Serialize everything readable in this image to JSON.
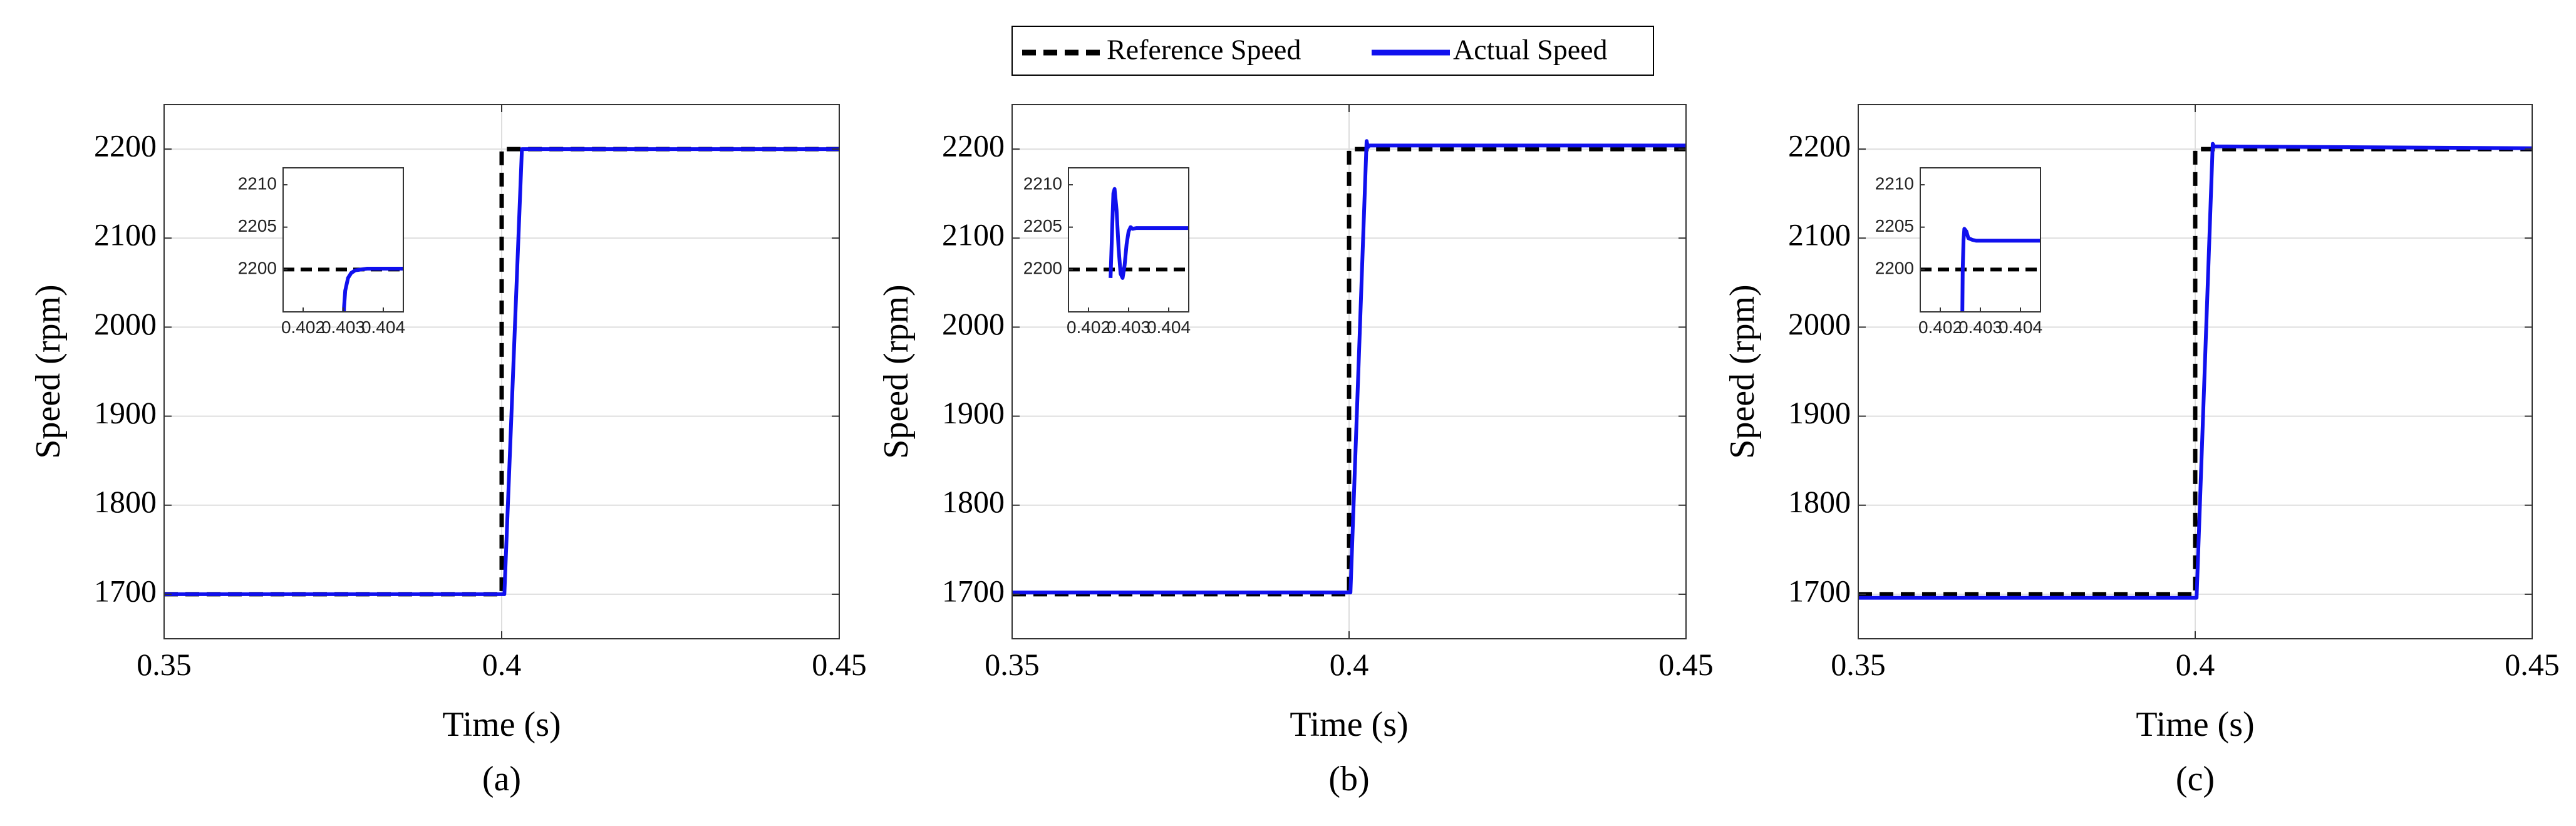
{
  "legend": {
    "entries": [
      {
        "label": "Reference Speed",
        "color": "#000000",
        "style": "dashed"
      },
      {
        "label": "Actual Speed",
        "color": "#1010ee",
        "style": "solid"
      }
    ]
  },
  "chart_data": [
    {
      "type": "line",
      "caption": "(a)",
      "xlabel": "Time (s)",
      "ylabel": "Speed (rpm)",
      "xlim": [
        0.35,
        0.45
      ],
      "ylim": [
        1650,
        2250
      ],
      "xticks": [
        "0.35",
        "0.4",
        "0.45"
      ],
      "yticks": [
        "1700",
        "1800",
        "1900",
        "2000",
        "2100",
        "2200"
      ],
      "grid": true,
      "series": [
        {
          "name": "Reference Speed",
          "x": [
            0.35,
            0.4,
            0.4,
            0.45
          ],
          "y": [
            1700,
            1700,
            2200,
            2200
          ]
        },
        {
          "name": "Actual Speed",
          "x": [
            0.35,
            0.4004,
            0.403,
            0.45
          ],
          "y": [
            1700,
            1700,
            2200,
            2200
          ]
        }
      ],
      "inset": {
        "xlim": [
          0.4015,
          0.4045
        ],
        "ylim": [
          2195,
          2212
        ],
        "xticks": [
          "0.402",
          "0.403",
          "0.404"
        ],
        "yticks": [
          "2200",
          "2205",
          "2210"
        ],
        "series": [
          {
            "name": "Reference Speed",
            "x": [
              0.4015,
              0.4045
            ],
            "y": [
              2200,
              2200
            ]
          },
          {
            "name": "Actual Speed",
            "x": [
              0.40301,
              0.40302,
              0.40305,
              0.40312,
              0.4032,
              0.4033,
              0.4036,
              0.4045
            ],
            "y": [
              2193,
              2195.5,
              2197.5,
              2199,
              2199.6,
              2199.9,
              2200.1,
              2200.1
            ]
          }
        ]
      }
    },
    {
      "type": "line",
      "caption": "(b)",
      "xlabel": "Time (s)",
      "ylabel": "Speed (rpm)",
      "xlim": [
        0.35,
        0.45
      ],
      "ylim": [
        1650,
        2250
      ],
      "xticks": [
        "0.35",
        "0.4",
        "0.45"
      ],
      "yticks": [
        "1700",
        "1800",
        "1900",
        "2000",
        "2100",
        "2200"
      ],
      "grid": true,
      "series": [
        {
          "name": "Reference Speed",
          "x": [
            0.35,
            0.4,
            0.4,
            0.45
          ],
          "y": [
            1700,
            1700,
            2200,
            2200
          ]
        },
        {
          "name": "Actual Speed",
          "x": [
            0.35,
            0.4002,
            0.4026,
            0.4028,
            0.403,
            0.4035,
            0.45
          ],
          "y": [
            1702,
            1702,
            2209,
            2202,
            2204,
            2204,
            2204
          ]
        }
      ],
      "inset": {
        "xlim": [
          0.4015,
          0.4045
        ],
        "ylim": [
          2195,
          2212
        ],
        "xticks": [
          "0.402",
          "0.403",
          "0.404"
        ],
        "yticks": [
          "2200",
          "2205",
          "2210"
        ],
        "series": [
          {
            "name": "Reference Speed",
            "x": [
              0.4015,
              0.4045
            ],
            "y": [
              2200,
              2200
            ]
          },
          {
            "name": "Actual Speed",
            "x": [
              0.40255,
              0.40259,
              0.40262,
              0.40265,
              0.4027,
              0.40275,
              0.4028,
              0.40285,
              0.4029,
              0.40295,
              0.403,
              0.40305,
              0.4031,
              0.4032,
              0.4045
            ],
            "y": [
              2199,
              2205,
              2209,
              2209.5,
              2207,
              2202.5,
              2199.5,
              2199,
              2200.5,
              2203,
              2204.5,
              2205,
              2204.8,
              2204.9,
              2204.9
            ]
          }
        ]
      }
    },
    {
      "type": "line",
      "caption": "(c)",
      "xlabel": "Time (s)",
      "ylabel": "Speed (rpm)",
      "xlim": [
        0.35,
        0.45
      ],
      "ylim": [
        1650,
        2250
      ],
      "xticks": [
        "0.35",
        "0.4",
        "0.45"
      ],
      "yticks": [
        "1700",
        "1800",
        "1900",
        "2000",
        "2100",
        "2200"
      ],
      "grid": true,
      "series": [
        {
          "name": "Reference Speed",
          "x": [
            0.35,
            0.4,
            0.4,
            0.45
          ],
          "y": [
            1700,
            1700,
            2200,
            2200
          ]
        },
        {
          "name": "Actual Speed",
          "x": [
            0.35,
            0.4002,
            0.4026,
            0.4028,
            0.45
          ],
          "y": [
            1696,
            1696,
            2206,
            2203,
            2201
          ]
        }
      ],
      "inset": {
        "xlim": [
          0.4015,
          0.4045
        ],
        "ylim": [
          2195,
          2212
        ],
        "xticks": [
          "0.402",
          "0.403",
          "0.404"
        ],
        "yticks": [
          "2200",
          "2205",
          "2210"
        ],
        "series": [
          {
            "name": "Reference Speed",
            "x": [
              0.4015,
              0.4045
            ],
            "y": [
              2200,
              2200
            ]
          },
          {
            "name": "Actual Speed",
            "x": [
              0.40255,
              0.40256,
              0.40258,
              0.4026,
              0.40265,
              0.4027,
              0.4028,
              0.4029,
              0.4045
            ],
            "y": [
              2195,
              2200,
              2203.5,
              2204.8,
              2204.5,
              2203.7,
              2203.5,
              2203.4,
              2203.4
            ]
          }
        ]
      }
    }
  ]
}
